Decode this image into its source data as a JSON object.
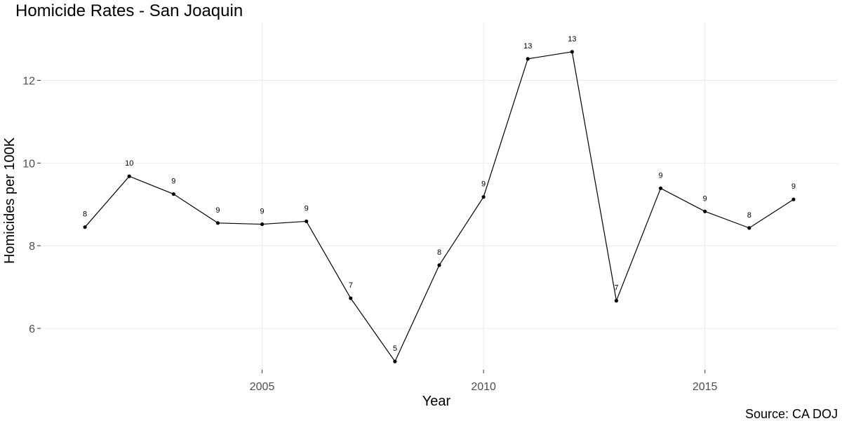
{
  "chart_data": {
    "type": "line",
    "title": "Homicide Rates - San Joaquin",
    "xlabel": "Year",
    "ylabel": "Homicides per 100K",
    "caption": "Source: CA DOJ",
    "grid": true,
    "legend": "none",
    "xlim": [
      2000,
      2018
    ],
    "ylim": [
      5,
      13.4
    ],
    "x_ticks": [
      2005,
      2010,
      2015
    ],
    "y_ticks": [
      6,
      8,
      10,
      12
    ],
    "x_tick_labels": [
      "2005",
      "2010",
      "2015"
    ],
    "y_tick_labels": [
      "6",
      "8",
      "10",
      "12"
    ],
    "series": [
      {
        "x": [
          2001,
          2002,
          2003,
          2004,
          2005,
          2006,
          2007,
          2008,
          2009,
          2010,
          2011,
          2012,
          2013,
          2014,
          2015,
          2016,
          2017
        ],
        "y": [
          8.45,
          9.68,
          9.25,
          8.55,
          8.52,
          8.59,
          6.73,
          5.2,
          7.53,
          9.18,
          12.52,
          12.69,
          6.67,
          9.39,
          8.83,
          8.43,
          9.12
        ],
        "labels": [
          "8",
          "10",
          "9",
          "9",
          "9",
          "9",
          "7",
          "5",
          "8",
          "9",
          "13",
          "13",
          "7",
          "9",
          "9",
          "8",
          "9"
        ]
      }
    ],
    "colors": {
      "line": "#000000",
      "point": "#000000",
      "grid": "#ebebeb",
      "tick_text": "#4d4d4d",
      "background": "#ffffff"
    }
  }
}
